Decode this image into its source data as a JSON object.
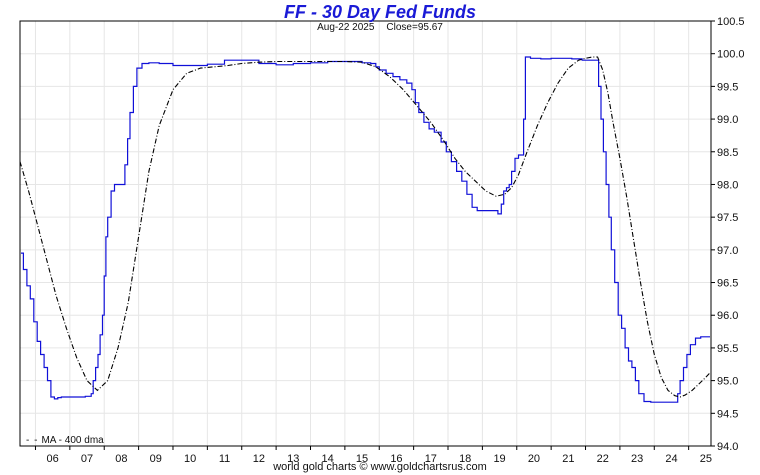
{
  "chart_data": {
    "type": "line",
    "title": "FF  -  30 Day Fed Funds",
    "subtitle_date": "Aug-22  2025",
    "subtitle_close": "Close=95.67",
    "credit": "world gold charts © www.goldchartsrus.com",
    "legend": [
      {
        "label": "MA - 400 dma",
        "style": "dash-dot"
      }
    ],
    "x_ticks": [
      "06",
      "07",
      "08",
      "09",
      "10",
      "11",
      "12",
      "13",
      "14",
      "15",
      "16",
      "17",
      "18",
      "19",
      "20",
      "21",
      "22",
      "23",
      "24",
      "25"
    ],
    "x_range": [
      2005.55,
      2025.65
    ],
    "y_ticks": [
      "94.0",
      "94.5",
      "95.0",
      "95.5",
      "96.0",
      "96.5",
      "97.0",
      "97.5",
      "98.0",
      "98.5",
      "99.0",
      "99.5",
      "100.0",
      "100.5"
    ],
    "ylim": [
      94.0,
      100.5
    ],
    "grid": true,
    "series": [
      {
        "name": "FF",
        "color": "#1010d8",
        "style": "solid",
        "x": [
          2005.58,
          2005.65,
          2005.75,
          2005.85,
          2005.95,
          2006.05,
          2006.15,
          2006.25,
          2006.35,
          2006.45,
          2006.55,
          2006.65,
          2006.75,
          2006.85,
          2006.95,
          2007.05,
          2007.15,
          2007.25,
          2007.35,
          2007.45,
          2007.55,
          2007.62,
          2007.68,
          2007.75,
          2007.82,
          2007.88,
          2007.95,
          2008.0,
          2008.05,
          2008.1,
          2008.2,
          2008.3,
          2008.4,
          2008.5,
          2008.6,
          2008.68,
          2008.75,
          2008.85,
          2008.95,
          2009.1,
          2009.3,
          2009.6,
          2010.0,
          2010.5,
          2011.0,
          2011.5,
          2012.0,
          2012.5,
          2013.0,
          2013.5,
          2014.0,
          2014.5,
          2015.0,
          2015.5,
          2015.75,
          2015.9,
          2016.0,
          2016.2,
          2016.4,
          2016.6,
          2016.8,
          2016.95,
          2017.05,
          2017.15,
          2017.3,
          2017.45,
          2017.6,
          2017.8,
          2017.95,
          2018.1,
          2018.25,
          2018.4,
          2018.55,
          2018.7,
          2018.85,
          2019.0,
          2019.15,
          2019.3,
          2019.45,
          2019.55,
          2019.62,
          2019.7,
          2019.78,
          2019.85,
          2019.95,
          2020.05,
          2020.15,
          2020.2,
          2020.25,
          2020.4,
          2020.7,
          2021.0,
          2021.3,
          2021.6,
          2021.9,
          2022.05,
          2022.15,
          2022.25,
          2022.32,
          2022.38,
          2022.45,
          2022.52,
          2022.6,
          2022.68,
          2022.75,
          2022.85,
          2022.95,
          2023.05,
          2023.15,
          2023.25,
          2023.35,
          2023.45,
          2023.55,
          2023.7,
          2023.9,
          2024.1,
          2024.3,
          2024.5,
          2024.6,
          2024.68,
          2024.75,
          2024.85,
          2024.95,
          2025.05,
          2025.2,
          2025.35,
          2025.5,
          2025.62
        ],
        "y": [
          96.95,
          96.7,
          96.45,
          96.25,
          95.9,
          95.6,
          95.4,
          95.2,
          95.0,
          94.75,
          94.72,
          94.74,
          94.75,
          94.75,
          94.75,
          94.75,
          94.75,
          94.75,
          94.75,
          94.76,
          94.76,
          94.8,
          95.0,
          95.2,
          95.4,
          95.7,
          96.0,
          96.6,
          97.2,
          97.5,
          97.9,
          98.0,
          98.0,
          98.0,
          98.3,
          98.7,
          99.1,
          99.5,
          99.78,
          99.85,
          99.86,
          99.85,
          99.82,
          99.82,
          99.84,
          99.9,
          99.9,
          99.85,
          99.83,
          99.85,
          99.86,
          99.88,
          99.88,
          99.86,
          99.85,
          99.8,
          99.75,
          99.7,
          99.65,
          99.6,
          99.55,
          99.45,
          99.25,
          99.1,
          98.95,
          98.85,
          98.8,
          98.65,
          98.5,
          98.35,
          98.2,
          98.05,
          97.85,
          97.65,
          97.6,
          97.6,
          97.6,
          97.6,
          97.55,
          97.7,
          97.9,
          97.95,
          98.0,
          98.2,
          98.4,
          98.45,
          98.45,
          99.0,
          99.95,
          99.93,
          99.92,
          99.93,
          99.93,
          99.92,
          99.9,
          99.9,
          99.9,
          99.9,
          99.9,
          99.5,
          99.0,
          98.5,
          98.0,
          97.5,
          97.0,
          96.5,
          96.0,
          95.8,
          95.5,
          95.3,
          95.2,
          95.0,
          94.8,
          94.68,
          94.67,
          94.67,
          94.67,
          94.67,
          94.67,
          94.8,
          95.0,
          95.2,
          95.4,
          95.55,
          95.65,
          95.67,
          95.67,
          95.67
        ]
      },
      {
        "name": "MA - 400 dma",
        "color": "#000000",
        "style": "dash-dot",
        "x": [
          2005.55,
          2005.8,
          2006.0,
          2006.3,
          2006.6,
          2006.9,
          2007.2,
          2007.5,
          2007.8,
          2008.1,
          2008.4,
          2008.7,
          2009.0,
          2009.3,
          2009.6,
          2010.0,
          2010.4,
          2010.8,
          2011.2,
          2011.6,
          2012.0,
          2012.5,
          2013.0,
          2013.5,
          2014.0,
          2014.5,
          2015.0,
          2015.5,
          2015.9,
          2016.3,
          2016.7,
          2017.1,
          2017.5,
          2017.9,
          2018.2,
          2018.5,
          2018.8,
          2019.1,
          2019.4,
          2019.65,
          2019.85,
          2020.05,
          2020.3,
          2020.6,
          2020.9,
          2021.2,
          2021.5,
          2021.8,
          2022.0,
          2022.2,
          2022.35,
          2022.5,
          2022.65,
          2022.8,
          2023.0,
          2023.2,
          2023.4,
          2023.6,
          2023.8,
          2024.0,
          2024.2,
          2024.4,
          2024.6,
          2024.75,
          2024.9,
          2025.1,
          2025.3,
          2025.5,
          2025.62
        ],
        "y": [
          98.35,
          97.9,
          97.5,
          96.9,
          96.3,
          95.8,
          95.35,
          95.0,
          94.85,
          95.0,
          95.5,
          96.2,
          97.2,
          98.2,
          98.9,
          99.45,
          99.7,
          99.78,
          99.8,
          99.82,
          99.85,
          99.87,
          99.88,
          99.88,
          99.88,
          99.88,
          99.88,
          99.87,
          99.8,
          99.65,
          99.45,
          99.2,
          98.95,
          98.65,
          98.4,
          98.2,
          98.05,
          97.9,
          97.82,
          97.85,
          97.95,
          98.15,
          98.5,
          98.9,
          99.25,
          99.55,
          99.78,
          99.9,
          99.93,
          99.95,
          99.95,
          99.75,
          99.4,
          98.95,
          98.4,
          97.8,
          97.15,
          96.5,
          95.9,
          95.4,
          95.05,
          94.85,
          94.77,
          94.75,
          94.78,
          94.85,
          94.95,
          95.05,
          95.12
        ]
      }
    ]
  }
}
